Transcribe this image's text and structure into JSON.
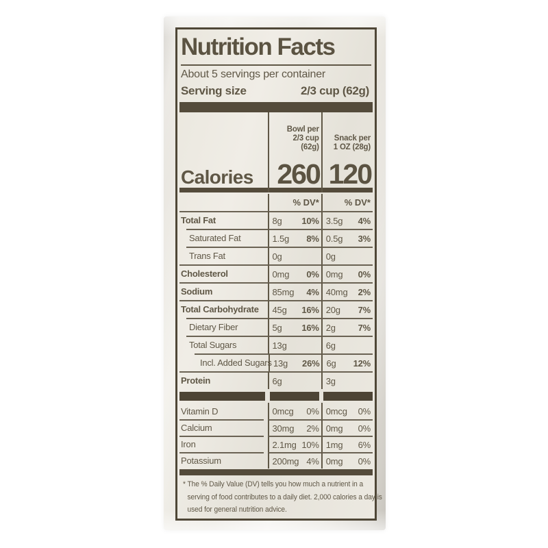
{
  "label": {
    "title": "Nutrition Facts",
    "servings_per_container": "About 5 servings per container",
    "serving_size_label": "Serving size",
    "serving_size_value": "2/3 cup (62g)",
    "bowl_header": [
      "Bowl per",
      "2/3 cup",
      "(62g)"
    ],
    "snack_header": [
      "Snack per",
      "1 OZ (28g)"
    ],
    "calories_label": "Calories",
    "calories_bowl": "260",
    "calories_snack": "120",
    "dv_header": "% DV*",
    "rows": [
      {
        "name": "Total Fat",
        "bowl_amt": "8g",
        "bowl_dv": "10%",
        "snack_amt": "3.5g",
        "snack_dv": "4%"
      },
      {
        "name": "Saturated Fat",
        "bowl_amt": "1.5g",
        "bowl_dv": "8%",
        "snack_amt": "0.5g",
        "snack_dv": "3%"
      },
      {
        "name": "Trans Fat",
        "bowl_amt": "0g",
        "bowl_dv": "",
        "snack_amt": "0g",
        "snack_dv": ""
      },
      {
        "name": "Cholesterol",
        "bowl_amt": "0mg",
        "bowl_dv": "0%",
        "snack_amt": "0mg",
        "snack_dv": "0%"
      },
      {
        "name": "Sodium",
        "bowl_amt": "85mg",
        "bowl_dv": "4%",
        "snack_amt": "40mg",
        "snack_dv": "2%"
      },
      {
        "name": "Total Carbohydrate",
        "bowl_amt": "45g",
        "bowl_dv": "16%",
        "snack_amt": "20g",
        "snack_dv": "7%"
      },
      {
        "name": "Dietary Fiber",
        "bowl_amt": "5g",
        "bowl_dv": "16%",
        "snack_amt": "2g",
        "snack_dv": "7%"
      },
      {
        "name": "Total Sugars",
        "bowl_amt": "13g",
        "bowl_dv": "",
        "snack_amt": "6g",
        "snack_dv": ""
      },
      {
        "name": "Incl. Added Sugars",
        "bowl_amt": "13g",
        "bowl_dv": "26%",
        "snack_amt": "6g",
        "snack_dv": "12%"
      },
      {
        "name": "Protein",
        "bowl_amt": "6g",
        "bowl_dv": "",
        "snack_amt": "3g",
        "snack_dv": ""
      }
    ],
    "vitamins": [
      {
        "name": "Vitamin D",
        "bowl_amt": "0mcg",
        "bowl_dv": "0%",
        "snack_amt": "0mcg",
        "snack_dv": "0%"
      },
      {
        "name": "Calcium",
        "bowl_amt": "30mg",
        "bowl_dv": "2%",
        "snack_amt": "0mg",
        "snack_dv": "0%"
      },
      {
        "name": "Iron",
        "bowl_amt": "2.1mg",
        "bowl_dv": "10%",
        "snack_amt": "1mg",
        "snack_dv": "6%"
      },
      {
        "name": "Potassium",
        "bowl_amt": "200mg",
        "bowl_dv": "4%",
        "snack_amt": "0mg",
        "snack_dv": "0%"
      }
    ],
    "footnote": "* The % Daily Value (DV) tells you how much a nutrient in a serving of food contributes to a daily diet. 2,000 calories a day is used for general nutrition advice.",
    "colors": {
      "ink": "#5f5746",
      "heavy_bar": "#544b3b",
      "paper": "#e9e6dd"
    }
  }
}
